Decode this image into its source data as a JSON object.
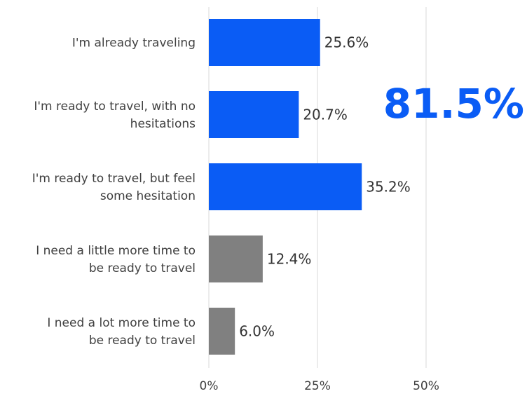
{
  "chart_data": {
    "type": "bar",
    "orientation": "horizontal",
    "categories": [
      [
        "I'm already traveling"
      ],
      [
        "I'm ready to travel, with no",
        "hesitations"
      ],
      [
        "I'm ready to travel, but feel",
        "some hesitation"
      ],
      [
        "I need a little more time to",
        "be ready to travel"
      ],
      [
        "I need a lot more time to",
        "be ready to travel"
      ]
    ],
    "values": [
      25.6,
      20.7,
      35.2,
      12.4,
      6.0
    ],
    "data_labels": [
      "25.6%",
      "20.7%",
      "35.2%",
      "12.4%",
      "6.0%"
    ],
    "bar_colors": [
      "#0a5cf5",
      "#0a5cf5",
      "#0a5cf5",
      "#808080",
      "#808080"
    ],
    "xlim": [
      0,
      50
    ],
    "x_ticks": [
      0,
      25,
      50
    ],
    "x_tick_labels": [
      "0%",
      "25%",
      "50%"
    ],
    "grid": true,
    "grid_color": "#d9d9d9",
    "annotation": {
      "text": "81.5%",
      "color": "#0a5cf5"
    }
  }
}
